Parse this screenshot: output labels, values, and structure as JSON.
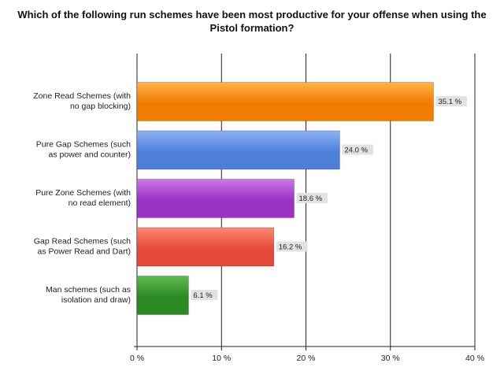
{
  "chart_data": {
    "type": "bar",
    "orientation": "horizontal",
    "title": "Which of the following run schemes have been most productive for your offense when using the Pistol formation?",
    "categories": [
      [
        "Zone Read Schemes (with",
        "no gap blocking)"
      ],
      [
        "Pure Gap Schemes (such",
        "as power and counter)"
      ],
      [
        "Pure Zone Schemes (with",
        "no read element)"
      ],
      [
        "Gap Read Schemes (such",
        "as Power Read and Dart)"
      ],
      [
        "Man schemes (such as",
        "isolation and draw)"
      ]
    ],
    "values": [
      35.1,
      24.0,
      18.6,
      16.2,
      6.1
    ],
    "value_labels": [
      "35.1 %",
      "24.0 %",
      "18.6 %",
      "16.2 %",
      "6.1 %"
    ],
    "bar_colors": [
      "#f07c00",
      "#4d7fd8",
      "#9a33c4",
      "#e5493b",
      "#2c8a24"
    ],
    "bar_colors_light": [
      "#ffb347",
      "#8db3f5",
      "#cc77e8",
      "#ff8a70",
      "#5fba4e"
    ],
    "xlim": [
      0,
      40
    ],
    "xticks": [
      0,
      10,
      20,
      30,
      40
    ],
    "xtick_labels": [
      "0 %",
      "10 %",
      "20 %",
      "30 %",
      "40 %"
    ],
    "grid": true,
    "legend": "none"
  }
}
